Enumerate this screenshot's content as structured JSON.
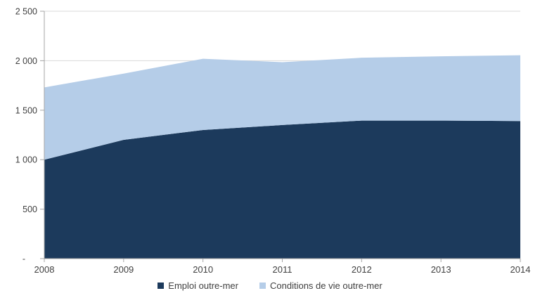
{
  "chart_data": {
    "type": "area",
    "stacked": true,
    "title": "",
    "xlabel": "",
    "ylabel": "",
    "categories": [
      "2008",
      "2009",
      "2010",
      "2011",
      "2012",
      "2013",
      "2014"
    ],
    "series": [
      {
        "name": "Emploi outre-mer",
        "color": "#1C3A5C",
        "values": [
          1000,
          1200,
          1300,
          1350,
          1395,
          1395,
          1390
        ]
      },
      {
        "name": "Conditions de vie outre-mer",
        "color": "#B5CDE8",
        "values": [
          730,
          670,
          720,
          635,
          635,
          650,
          665
        ]
      }
    ],
    "stacked_totals": [
      1730,
      1870,
      2020,
      1985,
      2030,
      2045,
      2055
    ],
    "ylim": [
      0,
      2500
    ],
    "y_ticks": [
      {
        "label": "2 500",
        "value": 2500
      },
      {
        "label": "2 000",
        "value": 2000
      },
      {
        "label": "1 500",
        "value": 1500
      },
      {
        "label": "1 000",
        "value": 1000
      },
      {
        "label": "500",
        "value": 500
      },
      {
        "label": "-",
        "value": 0
      }
    ],
    "grid": "horizontal",
    "legend_position": "bottom"
  },
  "colors": {
    "gridline": "#D9D9D9",
    "axis": "#A6A6A6",
    "tick_text": "#404040",
    "background": "#FFFFFF"
  }
}
